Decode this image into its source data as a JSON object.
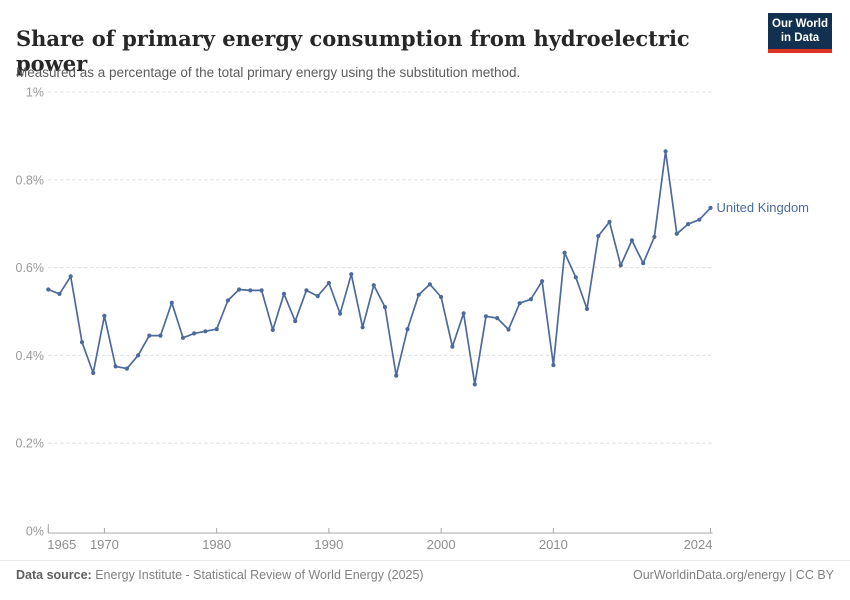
{
  "header": {
    "title": "Share of primary energy consumption from hydroelectric power",
    "subtitle": "Measured as a percentage of the total primary energy using the substitution method.",
    "logo": {
      "line1": "Our World",
      "line2": "in Data"
    }
  },
  "colors": {
    "line": "#4C6A9C",
    "logo_background": "#12304F",
    "logo_underline": "#DC3222",
    "gridline": "#dddddd",
    "axis": "#a8a8a8"
  },
  "chart_data": {
    "type": "line",
    "title": "Share of primary energy consumption from hydroelectric power",
    "subtitle": "Measured as a percentage of the total primary energy using the substitution method.",
    "xlabel": "",
    "ylabel": "",
    "xlim": [
      1965,
      2024
    ],
    "ylim": [
      0,
      1
    ],
    "grid": "horizontal-dashed",
    "x_ticks": [
      1965,
      1970,
      1980,
      1990,
      2000,
      2010,
      2024
    ],
    "y_ticks": [
      {
        "value": 0,
        "label": "0%"
      },
      {
        "value": 0.2,
        "label": "0.2%"
      },
      {
        "value": 0.4,
        "label": "0.4%"
      },
      {
        "value": 0.6,
        "label": "0.6%"
      },
      {
        "value": 0.8,
        "label": "0.8%"
      },
      {
        "value": 1,
        "label": "1%"
      }
    ],
    "series": [
      {
        "name": "United Kingdom",
        "color": "#4C6A9C",
        "x": [
          1965,
          1966,
          1967,
          1968,
          1969,
          1970,
          1971,
          1972,
          1973,
          1974,
          1975,
          1976,
          1977,
          1978,
          1979,
          1980,
          1981,
          1982,
          1983,
          1984,
          1985,
          1986,
          1987,
          1988,
          1989,
          1990,
          1991,
          1992,
          1993,
          1994,
          1995,
          1996,
          1997,
          1998,
          1999,
          2000,
          2001,
          2002,
          2003,
          2004,
          2005,
          2006,
          2007,
          2008,
          2009,
          2010,
          2011,
          2012,
          2013,
          2014,
          2015,
          2016,
          2017,
          2018,
          2019,
          2020,
          2021,
          2022,
          2023,
          2024
        ],
        "values": [
          0.55,
          0.54,
          0.58,
          0.43,
          0.36,
          0.49,
          0.375,
          0.37,
          0.4,
          0.445,
          0.445,
          0.52,
          0.44,
          0.45,
          0.455,
          0.46,
          0.525,
          0.55,
          0.548,
          0.548,
          0.458,
          0.54,
          0.478,
          0.548,
          0.535,
          0.565,
          0.495,
          0.585,
          0.464,
          0.56,
          0.51,
          0.354,
          0.46,
          0.538,
          0.562,
          0.533,
          0.42,
          0.496,
          0.334,
          0.489,
          0.485,
          0.459,
          0.519,
          0.528,
          0.569,
          0.378,
          0.634,
          0.578,
          0.506,
          0.672,
          0.704,
          0.605,
          0.662,
          0.61,
          0.67,
          0.865,
          0.677,
          0.699,
          0.709,
          0.736
        ]
      }
    ],
    "end_label": "United Kingdom",
    "legend_position": "end-of-line"
  },
  "footer": {
    "datasource_label": "Data source:",
    "datasource_text": " Energy Institute - Statistical Review of World Energy (2025)",
    "credit": "OurWorldinData.org/energy | CC BY"
  }
}
